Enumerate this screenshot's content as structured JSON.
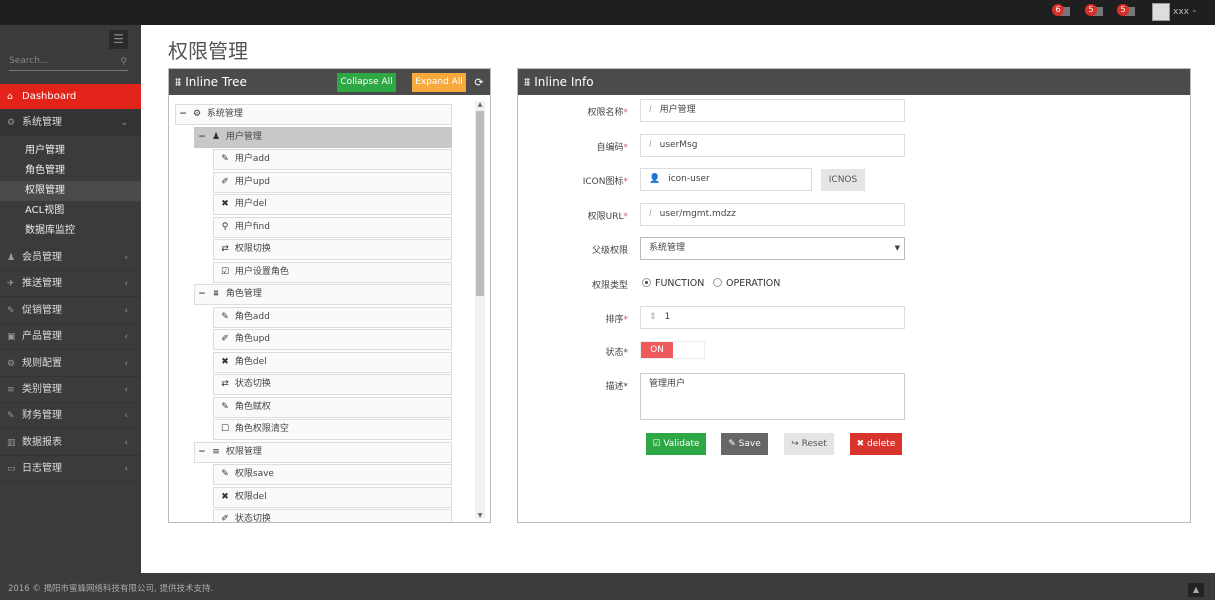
{
  "topbar": {
    "notifications": [
      {
        "count": "6",
        "icon": "bell-icon"
      },
      {
        "count": "5",
        "icon": "envelope-icon"
      },
      {
        "count": "5",
        "icon": "tasks-icon"
      }
    ],
    "user": "xxx"
  },
  "sidebar": {
    "search_placeholder": "Search...",
    "dashboard": "Dashboard",
    "system": "系统管理",
    "sub_items": [
      "用户管理",
      "角色管理",
      "权限管理",
      "ACL视图",
      "数据库监控"
    ],
    "active_sub": "权限管理",
    "items": [
      "会员管理",
      "推送管理",
      "促销管理",
      "产品管理",
      "规则配置",
      "类别管理",
      "财务管理",
      "数据报表",
      "日志管理"
    ]
  },
  "page": {
    "title": "权限管理"
  },
  "tree_panel": {
    "title": "Inline Tree",
    "collapse_all": "Collapse All",
    "expand_all": "Expand All",
    "nodes": [
      {
        "level": 0,
        "label": "系统管理",
        "icon": "cogs-icon",
        "toggle": "−"
      },
      {
        "level": 1,
        "label": "用户管理",
        "icon": "user-icon",
        "toggle": "−",
        "selected": true
      },
      {
        "level": 2,
        "label": "用户add",
        "icon": "pencil-icon"
      },
      {
        "level": 2,
        "label": "用户upd",
        "icon": "edit-icon"
      },
      {
        "level": 2,
        "label": "用户del",
        "icon": "times-icon"
      },
      {
        "level": 2,
        "label": "用户find",
        "icon": "search-icon"
      },
      {
        "level": 2,
        "label": "权限切换",
        "icon": "retweet-icon"
      },
      {
        "level": 2,
        "label": "用户设置角色",
        "icon": "check-square-icon"
      },
      {
        "level": 1,
        "label": "角色管理",
        "icon": "sitemap-icon",
        "toggle": "−"
      },
      {
        "level": 2,
        "label": "角色add",
        "icon": "pencil-icon"
      },
      {
        "level": 2,
        "label": "角色upd",
        "icon": "edit-icon"
      },
      {
        "level": 2,
        "label": "角色del",
        "icon": "times-icon"
      },
      {
        "level": 2,
        "label": "状态切换",
        "icon": "retweet-icon"
      },
      {
        "level": 2,
        "label": "角色赋权",
        "icon": "pencil-icon"
      },
      {
        "level": 2,
        "label": "角色权限清空",
        "icon": "square-icon"
      },
      {
        "level": 1,
        "label": "权限管理",
        "icon": "list-icon",
        "toggle": "−"
      },
      {
        "level": 2,
        "label": "权限save",
        "icon": "pencil-icon"
      },
      {
        "level": 2,
        "label": "权限del",
        "icon": "times-icon"
      },
      {
        "level": 2,
        "label": "状态切换",
        "icon": "edit-icon"
      }
    ]
  },
  "info_panel": {
    "title": "Inline Info",
    "fields": {
      "name": {
        "label": "权限名称",
        "value": "用户管理"
      },
      "code": {
        "label": "自编码",
        "value": "userMsg"
      },
      "icon": {
        "label": "ICON图标",
        "value": "icon-user",
        "button": "ICNOS"
      },
      "url": {
        "label": "权限URL",
        "value": "user/mgmt.mdzz"
      },
      "parent": {
        "label": "父级权限",
        "value": "系统管理"
      },
      "type": {
        "label": "权限类型",
        "options": [
          "FUNCTION",
          "OPERATION"
        ],
        "selected": "FUNCTION"
      },
      "order": {
        "label": "排序",
        "value": "1"
      },
      "status": {
        "label": "状态",
        "value": "ON"
      },
      "desc": {
        "label": "描述",
        "value": "管理用户"
      }
    },
    "buttons": {
      "validate": "Validate",
      "save": "Save",
      "reset": "Reset",
      "delete": "delete"
    }
  },
  "colors": {
    "accent_red": "#e2231a",
    "green": "#2ea844",
    "orange": "#f8a93c",
    "dark": "#4b4b4b",
    "delete": "#d9342b",
    "switch_on": "#ef5a5a"
  },
  "footer": {
    "text": "2016 © 揭阳市蜜蜂网络科技有限公司, 提供技术支持."
  }
}
